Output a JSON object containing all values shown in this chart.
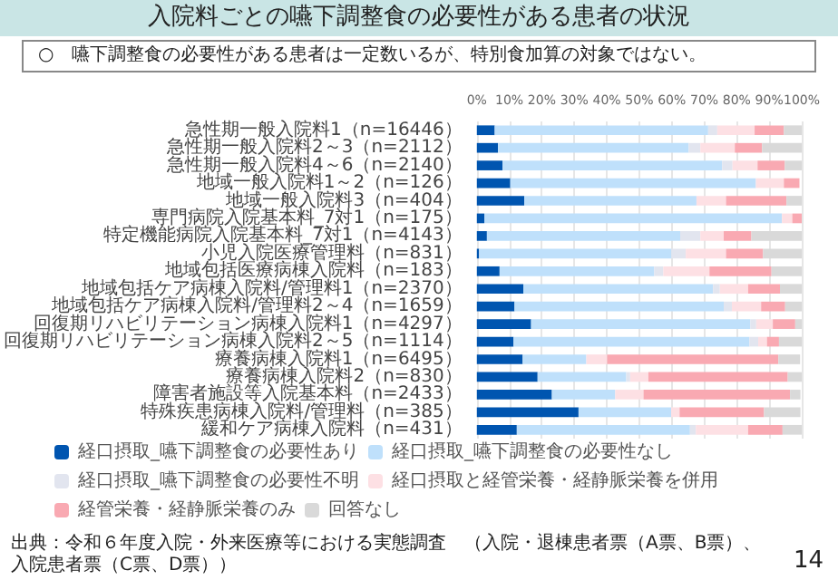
{
  "chart_data": {
    "type": "bar",
    "orientation": "horizontal",
    "stacked": true,
    "title": "入院料ごとの嚥下調整食の必要性がある患者の状況",
    "subtitle": "○　嚥下調整食の必要性がある患者は一定数いるが、特別食加算の対象ではない。",
    "categories": [
      "急性期一般入院料1（n=16446）",
      "急性期一般入院料2～3（n=2112）",
      "急性期一般入院料4～6（n=2140）",
      "地域一般入院料1～2（n=126）",
      "地域一般入院料3（n=404）",
      "専門病院入院基本料_7対1（n=175）",
      "特定機能病院入院基本料_7対1（n=4143）",
      "小児入院医療管理料（n=831）",
      "地域包括医療病棟入院料（n=183）",
      "地域包括ケア病棟入院料/管理料1（n=2370）",
      "地域包括ケア病棟入院料/管理料2～4（n=1659）",
      "回復期リハビリテーション病棟入院料1（n=4297）",
      "回復期リハビリテーション病棟入院料2～5（n=1114）",
      "療養病棟入院料1（n=6495）",
      "療養病棟入院料2（n=830）",
      "障害者施設等入院基本料（n=2433）",
      "特殊疾患病棟入院料/管理料（n=385）",
      "緩和ケア病棟入院料（n=431）"
    ],
    "series": [
      {
        "name": "経口摂取_嚥下調整食の必要性あり",
        "color": "#0055b0",
        "values": [
          5.5,
          6.5,
          7.9,
          10.3,
          14.6,
          2.3,
          3.1,
          0.7,
          7,
          14.3,
          11.6,
          16.7,
          11.3,
          14.1,
          18.7,
          23.1,
          31.3,
          12.3
        ]
      },
      {
        "name": "経口摂取_嚥下調整食の必要性なし",
        "color": "#bfe0fb",
        "values": [
          65.7,
          58.7,
          67.6,
          75.6,
          53,
          91.6,
          59.5,
          59.2,
          47.6,
          58.4,
          64.4,
          67.5,
          72.6,
          19.6,
          27.3,
          19.5,
          28.5,
          53.3
        ]
      },
      {
        "name": "経口摂取_嚥下調整食の必要性不明",
        "color": "#e2e5ef",
        "values": [
          2.8,
          3.6,
          3.2,
          0,
          0,
          0,
          6.2,
          4.4,
          2.8,
          2.1,
          2.5,
          1.8,
          2.7,
          null,
          1.2,
          null,
          null,
          1.8
        ]
      },
      {
        "name": "経口摂取と経管栄養・経静脈栄養を併用",
        "color": "#fde0e4",
        "values": [
          11.5,
          10.6,
          7.7,
          8.6,
          9.1,
          3.2,
          7.2,
          12.4,
          14.2,
          8.7,
          9,
          5.1,
          2.7,
          6.4,
          5.6,
          8.7,
          2.6,
          16.1
        ]
      },
      {
        "name": "経管栄養・経静脈栄養のみ",
        "color": "#f9a9b2",
        "values": [
          9,
          8.4,
          8.4,
          4.8,
          18.6,
          2.9,
          8.5,
          11.4,
          19.1,
          9.8,
          7.4,
          6.9,
          3.7,
          52.7,
          42.9,
          45.1,
          26,
          10.6
        ]
      },
      {
        "name": "回答なし",
        "color": "#d9d9d9",
        "values": [
          5.5,
          12.2,
          5.2,
          null,
          4.7,
          0,
          15.5,
          11.9,
          9.3,
          6.7,
          5.1,
          2,
          7,
          6.7,
          4.3,
          3.2,
          11.2,
          5.9
        ]
      }
    ],
    "xlim": [
      0,
      100
    ],
    "xticks": [
      {
        "value": 0,
        "label": "0%"
      },
      {
        "value": 10,
        "label": "10%"
      },
      {
        "value": 20,
        "label": "20%"
      },
      {
        "value": 30,
        "label": "30%"
      },
      {
        "value": 40,
        "label": "40%"
      },
      {
        "value": 50,
        "label": "50%"
      },
      {
        "value": 60,
        "label": "60%"
      },
      {
        "value": 70,
        "label": "70%"
      },
      {
        "value": 80,
        "label": "80%"
      },
      {
        "value": 90,
        "label": "90%"
      },
      {
        "value": 100,
        "label": "100%"
      }
    ],
    "grid": "x",
    "legend": "bottom",
    "annotations": [
      "出典：令和６年度入院・外来医療等における実態調査　（入院・退棟患者票（A票、B票）、入院患者票（C票、D票））",
      "14"
    ]
  }
}
